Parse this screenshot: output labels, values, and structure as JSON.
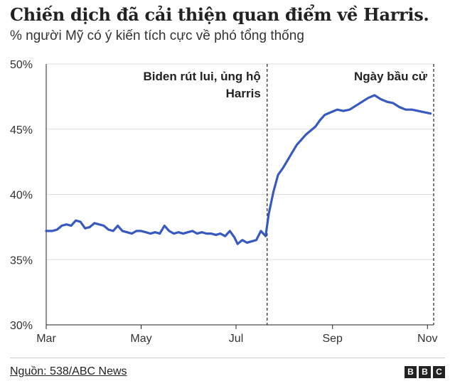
{
  "title": "Chiến dịch đã cải thiện quan điểm về Harris.",
  "subtitle": "% người Mỹ có ý kiến tích cực về phó tổng thống",
  "source": "Nguồn: 538/ABC News",
  "logo_letters": [
    "B",
    "B",
    "C"
  ],
  "chart_data": {
    "type": "line",
    "title": "Chiến dịch đã cải thiện quan điểm về Harris.",
    "subtitle": "% người Mỹ có ý kiến tích cực về phó tổng thống",
    "xlabel": "",
    "ylabel": "",
    "x_ticks": [
      "Mar",
      "May",
      "Jul",
      "Sep",
      "Nov"
    ],
    "x_tick_dates": [
      "2024-03-01",
      "2024-05-01",
      "2024-07-01",
      "2024-09-01",
      "2024-11-01"
    ],
    "y_ticks": [
      30,
      35,
      40,
      45,
      50
    ],
    "y_tick_labels": [
      "30%",
      "35%",
      "40%",
      "45%",
      "50%"
    ],
    "ylim": [
      30,
      50
    ],
    "xlim": [
      "2024-03-01",
      "2024-11-05"
    ],
    "grid": "horizontal",
    "line_color": "#3759c0",
    "annotations": [
      {
        "text_lines": [
          "Biden rút lui, ủng hộ",
          "Harris"
        ],
        "date": "2024-07-21"
      },
      {
        "text_lines": [
          "Ngày bầu cử"
        ],
        "date": "2024-11-05"
      }
    ],
    "series": [
      {
        "values": [
          [
            "2024-03-01",
            37.2
          ],
          [
            "2024-03-05",
            37.2
          ],
          [
            "2024-03-08",
            37.3
          ],
          [
            "2024-03-11",
            37.6
          ],
          [
            "2024-03-14",
            37.7
          ],
          [
            "2024-03-17",
            37.6
          ],
          [
            "2024-03-20",
            38.0
          ],
          [
            "2024-03-23",
            37.9
          ],
          [
            "2024-03-26",
            37.4
          ],
          [
            "2024-03-29",
            37.5
          ],
          [
            "2024-04-01",
            37.8
          ],
          [
            "2024-04-04",
            37.7
          ],
          [
            "2024-04-07",
            37.6
          ],
          [
            "2024-04-10",
            37.3
          ],
          [
            "2024-04-13",
            37.2
          ],
          [
            "2024-04-16",
            37.6
          ],
          [
            "2024-04-19",
            37.2
          ],
          [
            "2024-04-22",
            37.1
          ],
          [
            "2024-04-25",
            37.0
          ],
          [
            "2024-04-28",
            37.2
          ],
          [
            "2024-05-01",
            37.2
          ],
          [
            "2024-05-04",
            37.1
          ],
          [
            "2024-05-07",
            37.0
          ],
          [
            "2024-05-10",
            37.1
          ],
          [
            "2024-05-13",
            37.0
          ],
          [
            "2024-05-16",
            37.6
          ],
          [
            "2024-05-19",
            37.2
          ],
          [
            "2024-05-22",
            37.0
          ],
          [
            "2024-05-25",
            37.1
          ],
          [
            "2024-05-28",
            37.0
          ],
          [
            "2024-05-31",
            37.1
          ],
          [
            "2024-06-03",
            37.2
          ],
          [
            "2024-06-06",
            37.0
          ],
          [
            "2024-06-09",
            37.1
          ],
          [
            "2024-06-12",
            37.0
          ],
          [
            "2024-06-15",
            37.0
          ],
          [
            "2024-06-18",
            36.9
          ],
          [
            "2024-06-21",
            37.0
          ],
          [
            "2024-06-24",
            36.8
          ],
          [
            "2024-06-27",
            37.2
          ],
          [
            "2024-06-30",
            36.7
          ],
          [
            "2024-07-02",
            36.2
          ],
          [
            "2024-07-05",
            36.5
          ],
          [
            "2024-07-08",
            36.3
          ],
          [
            "2024-07-11",
            36.4
          ],
          [
            "2024-07-14",
            36.5
          ],
          [
            "2024-07-17",
            37.2
          ],
          [
            "2024-07-20",
            36.8
          ],
          [
            "2024-07-22",
            38.5
          ],
          [
            "2024-07-25",
            40.2
          ],
          [
            "2024-07-28",
            41.5
          ],
          [
            "2024-07-31",
            42.0
          ],
          [
            "2024-08-03",
            42.6
          ],
          [
            "2024-08-06",
            43.2
          ],
          [
            "2024-08-09",
            43.8
          ],
          [
            "2024-08-12",
            44.2
          ],
          [
            "2024-08-15",
            44.6
          ],
          [
            "2024-08-18",
            44.9
          ],
          [
            "2024-08-21",
            45.2
          ],
          [
            "2024-08-24",
            45.7
          ],
          [
            "2024-08-27",
            46.1
          ],
          [
            "2024-08-31",
            46.3
          ],
          [
            "2024-09-04",
            46.5
          ],
          [
            "2024-09-08",
            46.4
          ],
          [
            "2024-09-12",
            46.5
          ],
          [
            "2024-09-16",
            46.8
          ],
          [
            "2024-09-20",
            47.1
          ],
          [
            "2024-09-24",
            47.4
          ],
          [
            "2024-09-28",
            47.6
          ],
          [
            "2024-10-02",
            47.3
          ],
          [
            "2024-10-06",
            47.1
          ],
          [
            "2024-10-10",
            47.0
          ],
          [
            "2024-10-14",
            46.7
          ],
          [
            "2024-10-18",
            46.5
          ],
          [
            "2024-10-22",
            46.5
          ],
          [
            "2024-10-26",
            46.4
          ],
          [
            "2024-10-30",
            46.3
          ],
          [
            "2024-11-03",
            46.2
          ]
        ]
      }
    ]
  }
}
